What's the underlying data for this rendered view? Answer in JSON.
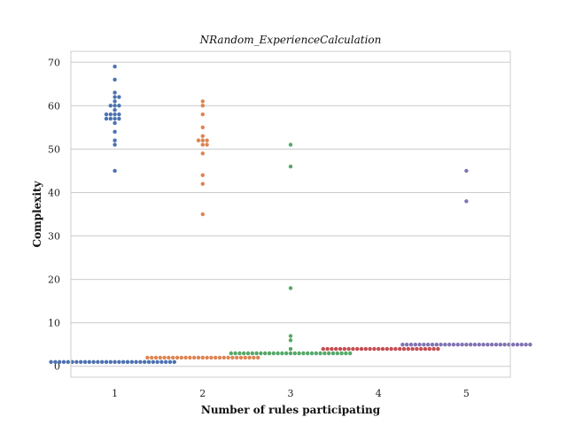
{
  "chart_data": {
    "type": "scatter",
    "style": "swarm",
    "title": "NRandom_ExperienceCalculation",
    "xlabel": "Number of rules participating",
    "ylabel": "Complexity",
    "categories": [
      "1",
      "2",
      "3",
      "4",
      "5"
    ],
    "ylim": [
      -2.5,
      72.5
    ],
    "yticks": [
      0,
      10,
      20,
      30,
      40,
      50,
      60,
      70
    ],
    "grid": "horizontal",
    "legend": "none",
    "series": [
      {
        "color": "#4c72b0",
        "values": [
          45,
          51,
          52,
          54,
          56,
          57,
          57,
          57,
          57,
          58,
          58,
          58,
          58,
          59,
          60,
          60,
          60,
          61,
          62,
          62,
          63,
          66,
          69,
          1,
          1,
          1,
          1,
          1,
          1,
          1,
          1,
          1,
          1,
          1,
          1,
          1,
          1,
          1,
          1,
          1,
          1,
          1,
          1,
          1,
          1,
          1,
          1,
          1,
          1,
          1,
          1,
          1,
          1
        ]
      },
      {
        "color": "#dd8452",
        "values": [
          35,
          42,
          44,
          49,
          51,
          51,
          52,
          52,
          52,
          53,
          55,
          58,
          60,
          61,
          2,
          2,
          2,
          2,
          2,
          2,
          2,
          2,
          2,
          2,
          2,
          2,
          2,
          2,
          2,
          2,
          2,
          2,
          2,
          2,
          2,
          2,
          2,
          2,
          2,
          2,
          2
        ]
      },
      {
        "color": "#55a868",
        "values": [
          4,
          6,
          7,
          18,
          46,
          51,
          3,
          3,
          3,
          3,
          3,
          3,
          3,
          3,
          3,
          3,
          3,
          3,
          3,
          3,
          3,
          3,
          3,
          3,
          3,
          3,
          3,
          3,
          3,
          3,
          3,
          3,
          3,
          3,
          3
        ]
      },
      {
        "color": "#c44e52",
        "values": [
          4,
          4,
          4,
          4,
          4,
          4,
          4,
          4,
          4,
          4,
          4,
          4,
          4,
          4,
          4,
          4,
          4,
          4,
          4,
          4,
          4,
          4,
          4,
          4,
          4,
          4,
          4,
          4
        ]
      },
      {
        "color": "#8172b3",
        "values": [
          38,
          45,
          5,
          5,
          5,
          5,
          5,
          5,
          5,
          5,
          5,
          5,
          5,
          5,
          5,
          5,
          5,
          5,
          5,
          5,
          5,
          5,
          5,
          5,
          5,
          5,
          5,
          5,
          5,
          5,
          5,
          5,
          5
        ]
      }
    ]
  }
}
